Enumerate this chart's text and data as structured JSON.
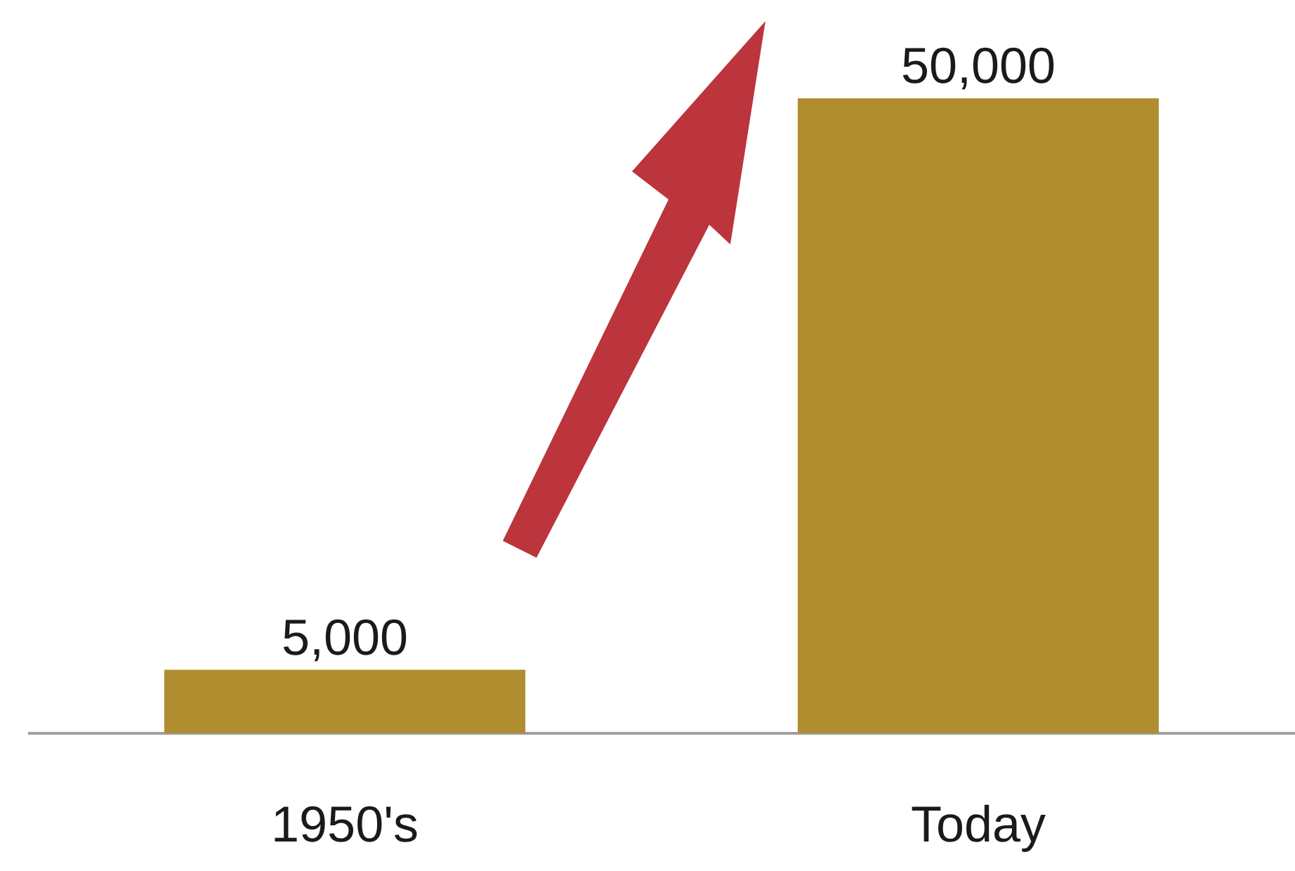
{
  "chart_data": {
    "type": "bar",
    "categories": [
      "1950's",
      "Today"
    ],
    "series": [
      {
        "color": "#b08d2f",
        "values": [
          5000,
          50000
        ],
        "value_labels": [
          "5,000",
          "50,000"
        ]
      }
    ],
    "tick_labels": "x"
  }
}
